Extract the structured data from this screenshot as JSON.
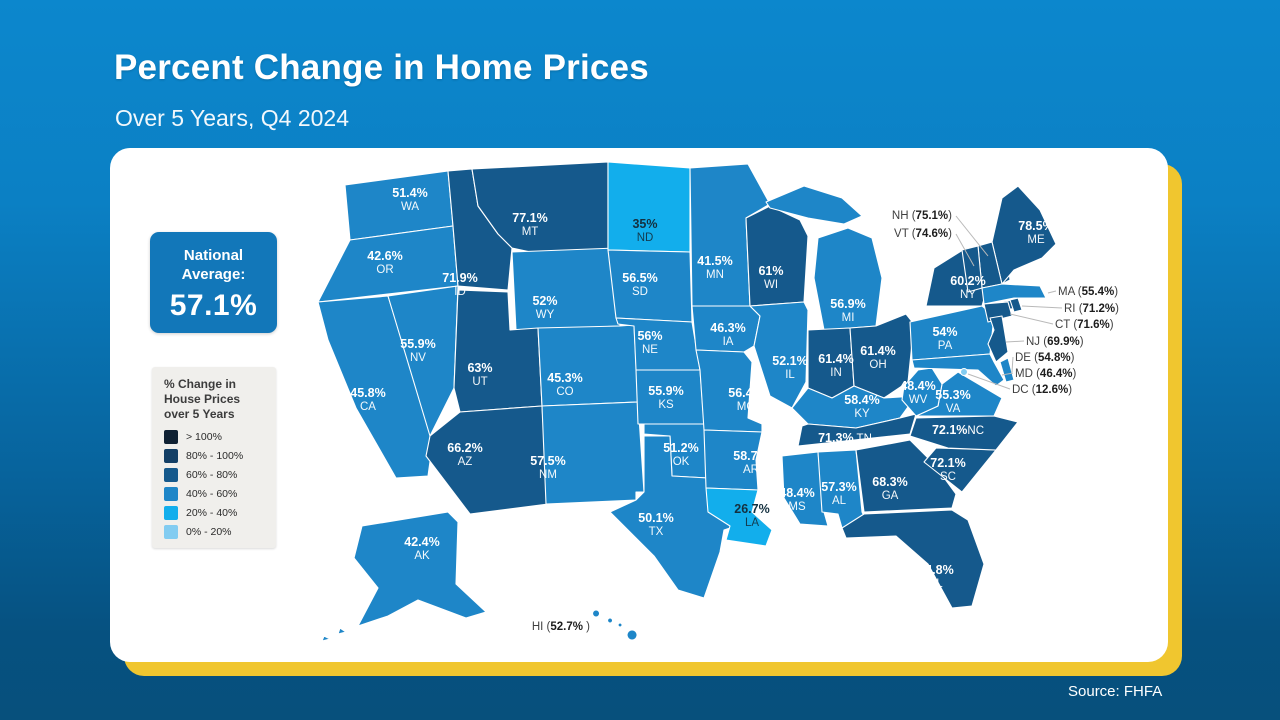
{
  "header": {
    "title": "Percent Change in Home Prices",
    "subtitle": "Over 5 Years, Q4 2024"
  },
  "national_average": {
    "label_line1": "National",
    "label_line2": "Average:",
    "value": "57.1%"
  },
  "legend": {
    "title_line1": "% Change in",
    "title_line2": "House Prices",
    "title_line3": "over 5 Years",
    "bins": [
      {
        "id": ">100",
        "label": "> 100%",
        "color": "#0f2133"
      },
      {
        "id": "80-100",
        "label": "80% - 100%",
        "color": "#133f66"
      },
      {
        "id": "60-80",
        "label": "60% - 80%",
        "color": "#15598c"
      },
      {
        "id": "40-60",
        "label": "40% - 60%",
        "color": "#1e86c8"
      },
      {
        "id": "20-40",
        "label": "20% - 40%",
        "color": "#12aeec"
      },
      {
        "id": "0-20",
        "label": "0% - 20%",
        "color": "#82ccf1"
      }
    ]
  },
  "footer": {
    "source": "Source: FHFA"
  },
  "colors": {
    "background_top": "#0c87cd",
    "background_bottom": "#07507c",
    "card": "#ffffff",
    "card_shadow_accent": "#f0c62f",
    "national_box": "#1277b9",
    "map_stroke": "#ffffff",
    "label_light": "#ffffff",
    "label_dark": "#14303f",
    "callout_text": "#3f3f3f",
    "callout_value": "#1d1d1d",
    "leader_line": "#b9b9b9"
  },
  "chart_data": {
    "type": "choropleth-map",
    "region": "United States",
    "unit": "percent change over 5 years",
    "title": "Percent Change in Home Prices",
    "subtitle": "Over 5 Years, Q4 2024",
    "national_average": 57.1,
    "source": "FHFA",
    "bins": [
      "> 100%",
      "80% - 100%",
      "60% - 80%",
      "40% - 60%",
      "20% - 40%",
      "0% - 20%"
    ],
    "states": [
      {
        "abbr": "WA",
        "value": 51.4,
        "bin": "40-60"
      },
      {
        "abbr": "OR",
        "value": 42.6,
        "bin": "40-60"
      },
      {
        "abbr": "CA",
        "value": 45.8,
        "bin": "40-60"
      },
      {
        "abbr": "NV",
        "value": 55.9,
        "bin": "40-60"
      },
      {
        "abbr": "ID",
        "value": 71.9,
        "bin": "60-80"
      },
      {
        "abbr": "MT",
        "value": 77.1,
        "bin": "60-80"
      },
      {
        "abbr": "WY",
        "value": 52,
        "bin": "40-60"
      },
      {
        "abbr": "UT",
        "value": 63,
        "bin": "60-80"
      },
      {
        "abbr": "CO",
        "value": 45.3,
        "bin": "40-60"
      },
      {
        "abbr": "AZ",
        "value": 66.2,
        "bin": "60-80"
      },
      {
        "abbr": "NM",
        "value": 57.5,
        "bin": "40-60"
      },
      {
        "abbr": "ND",
        "value": 35,
        "bin": "20-40"
      },
      {
        "abbr": "SD",
        "value": 56.5,
        "bin": "40-60"
      },
      {
        "abbr": "NE",
        "value": 56,
        "bin": "40-60"
      },
      {
        "abbr": "KS",
        "value": 55.9,
        "bin": "40-60"
      },
      {
        "abbr": "OK",
        "value": 51.2,
        "bin": "40-60"
      },
      {
        "abbr": "TX",
        "value": 50.1,
        "bin": "40-60"
      },
      {
        "abbr": "MN",
        "value": 41.5,
        "bin": "40-60"
      },
      {
        "abbr": "IA",
        "value": 46.3,
        "bin": "40-60"
      },
      {
        "abbr": "MO",
        "value": 56.4,
        "bin": "40-60"
      },
      {
        "abbr": "AR",
        "value": 58.7,
        "bin": "40-60"
      },
      {
        "abbr": "LA",
        "value": 26.7,
        "bin": "20-40"
      },
      {
        "abbr": "WI",
        "value": 61,
        "bin": "60-80"
      },
      {
        "abbr": "IL",
        "value": 52.1,
        "bin": "40-60"
      },
      {
        "abbr": "MS",
        "value": 48.4,
        "bin": "40-60"
      },
      {
        "abbr": "MI",
        "value": 56.9,
        "bin": "40-60"
      },
      {
        "abbr": "IN",
        "value": 61.4,
        "bin": "60-80"
      },
      {
        "abbr": "OH",
        "value": 61.4,
        "bin": "60-80"
      },
      {
        "abbr": "KY",
        "value": 58.4,
        "bin": "40-60"
      },
      {
        "abbr": "TN",
        "value": 71.3,
        "bin": "60-80"
      },
      {
        "abbr": "AL",
        "value": 57.3,
        "bin": "40-60"
      },
      {
        "abbr": "GA",
        "value": 68.3,
        "bin": "60-80"
      },
      {
        "abbr": "FL",
        "value": 74.8,
        "bin": "60-80"
      },
      {
        "abbr": "SC",
        "value": 72.1,
        "bin": "60-80"
      },
      {
        "abbr": "NC",
        "value": 72.1,
        "bin": "60-80"
      },
      {
        "abbr": "VA",
        "value": 55.3,
        "bin": "40-60"
      },
      {
        "abbr": "WV",
        "value": 48.4,
        "bin": "40-60"
      },
      {
        "abbr": "PA",
        "value": 54,
        "bin": "40-60"
      },
      {
        "abbr": "NY",
        "value": 60.2,
        "bin": "60-80"
      },
      {
        "abbr": "ME",
        "value": 78.5,
        "bin": "60-80"
      },
      {
        "abbr": "NH",
        "value": 75.1,
        "bin": "60-80"
      },
      {
        "abbr": "VT",
        "value": 74.6,
        "bin": "60-80"
      },
      {
        "abbr": "MA",
        "value": 55.4,
        "bin": "40-60"
      },
      {
        "abbr": "RI",
        "value": 71.2,
        "bin": "60-80"
      },
      {
        "abbr": "CT",
        "value": 71.6,
        "bin": "60-80"
      },
      {
        "abbr": "NJ",
        "value": 69.9,
        "bin": "60-80"
      },
      {
        "abbr": "DE",
        "value": 54.8,
        "bin": "40-60"
      },
      {
        "abbr": "MD",
        "value": 46.4,
        "bin": "40-60"
      },
      {
        "abbr": "DC",
        "value": 12.6,
        "bin": "0-20"
      },
      {
        "abbr": "AK",
        "value": 42.4,
        "bin": "40-60"
      },
      {
        "abbr": "HI",
        "value": 52.7,
        "bin": "40-60"
      }
    ],
    "callouts": [
      "NH",
      "VT",
      "MA",
      "RI",
      "CT",
      "NJ",
      "DE",
      "MD",
      "DC",
      "HI"
    ]
  }
}
